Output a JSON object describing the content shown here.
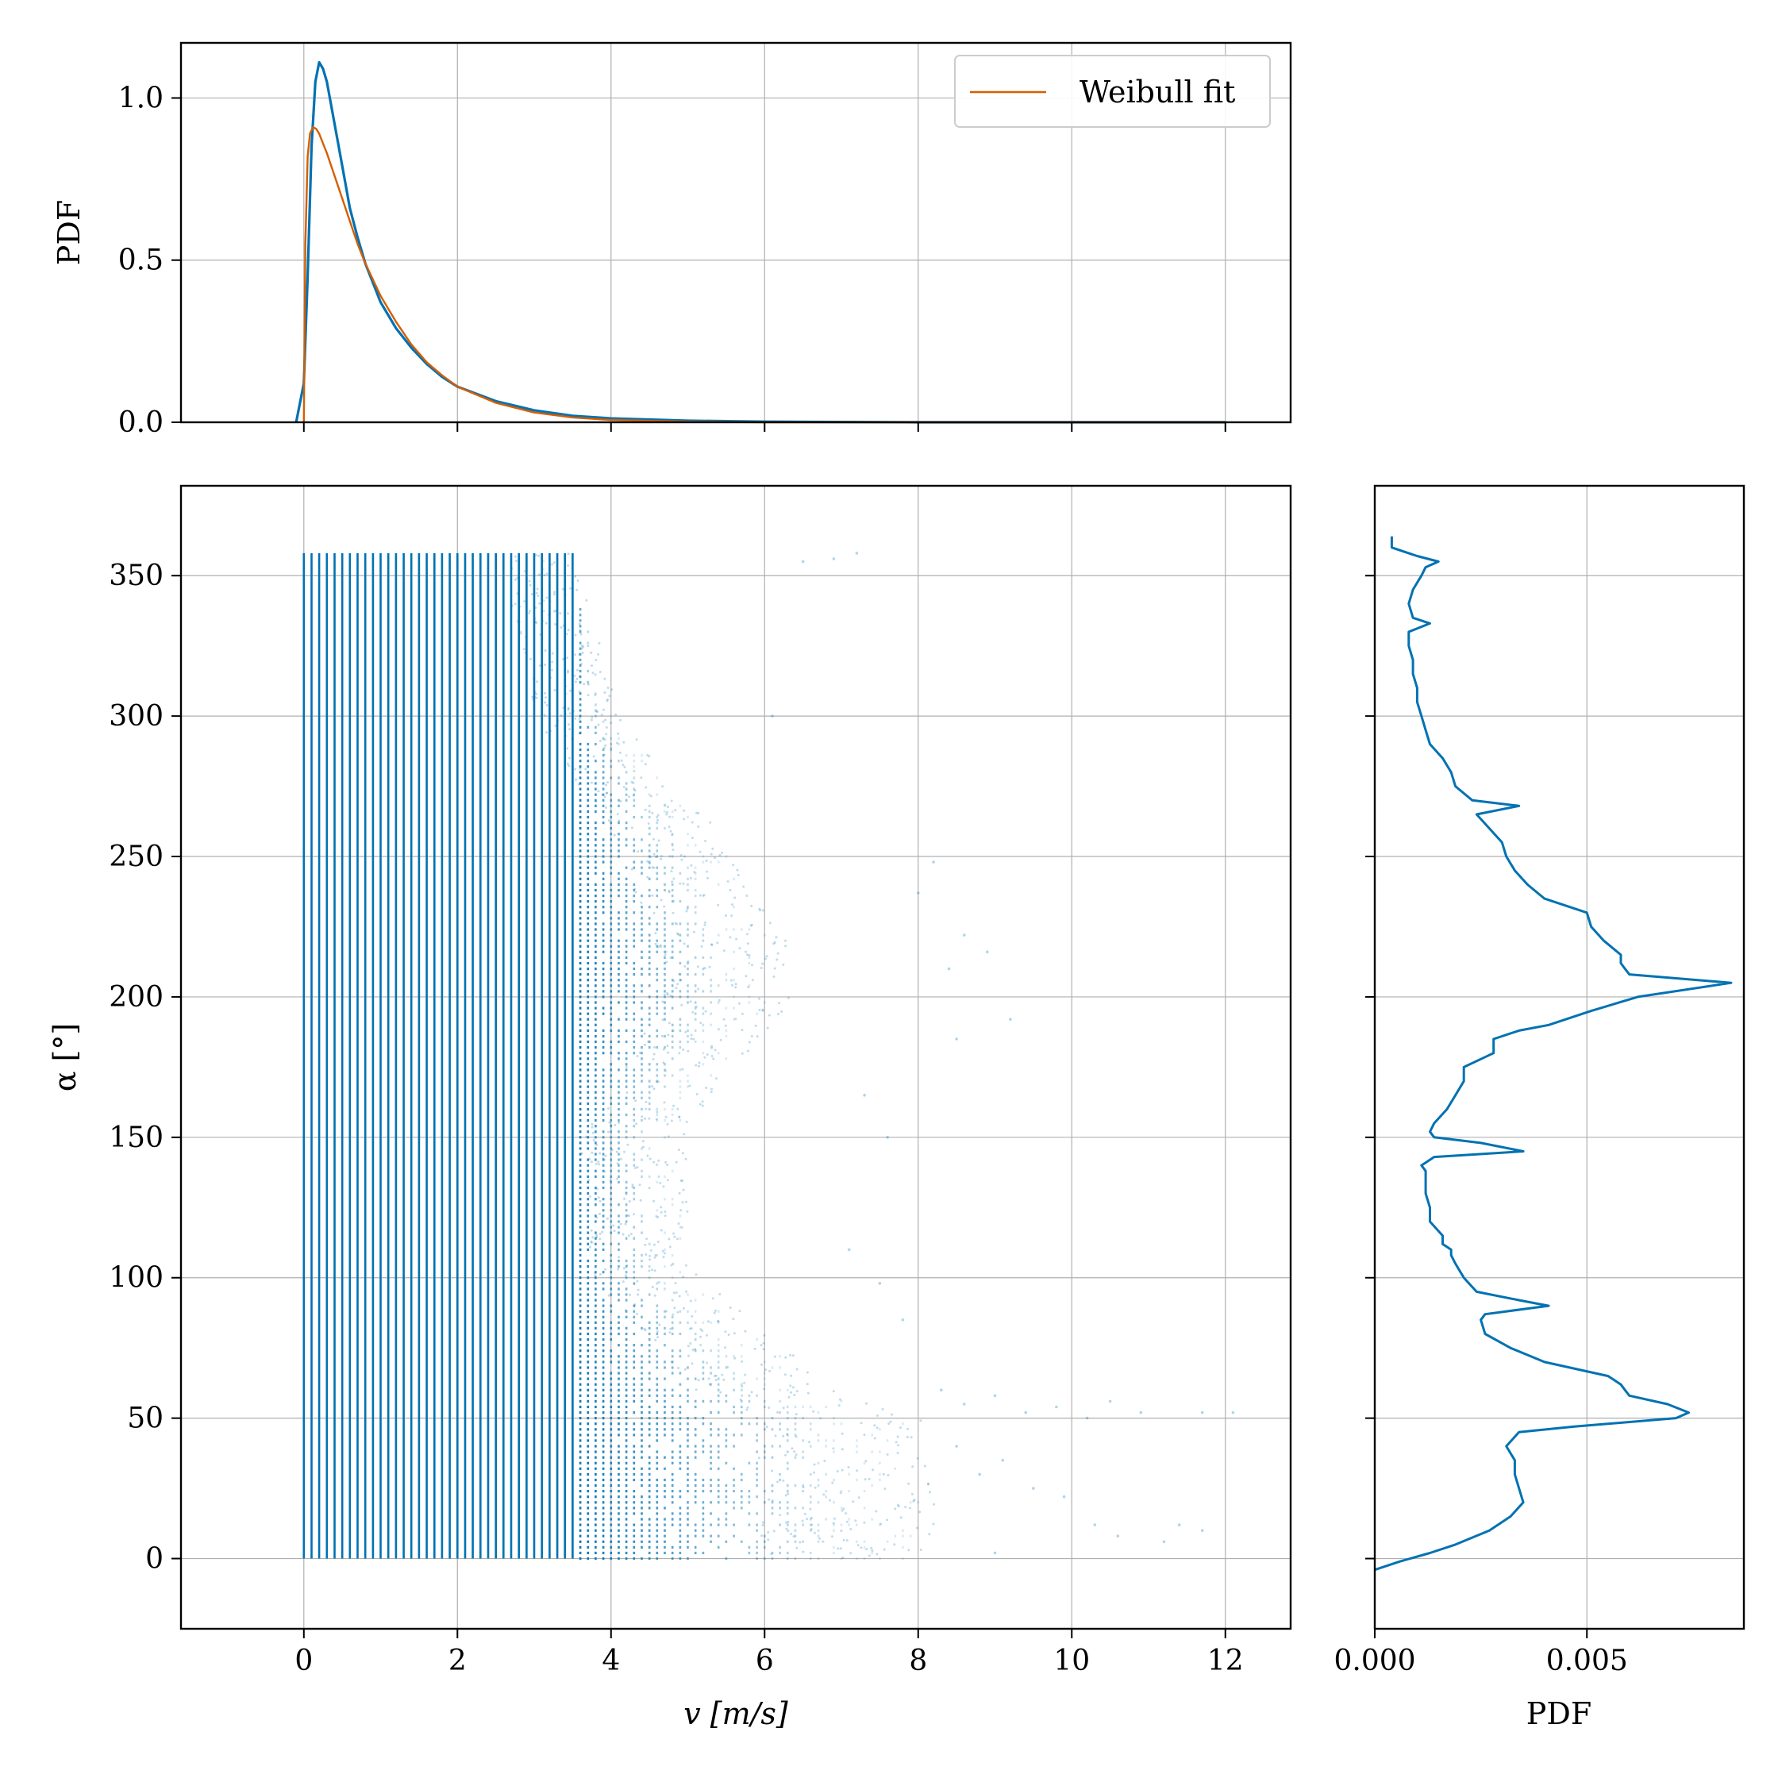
{
  "chart_data": [
    {
      "id": "top",
      "type": "line",
      "xlim": [
        -1.6,
        12.85
      ],
      "ylim": [
        0,
        1.17
      ],
      "xticks": [
        0,
        2,
        4,
        6,
        8,
        10,
        12
      ],
      "yticks": [
        0.0,
        0.5,
        1.0
      ],
      "ytick_labels": [
        "0.0",
        "0.5",
        "1.0"
      ],
      "ylabel": "PDF",
      "xlabel": "",
      "grid": true,
      "legend": {
        "placement": "top-right",
        "entries": [
          "Weibull fit"
        ]
      },
      "series": [
        {
          "name": "",
          "color": "#0072b2",
          "x": [
            -0.1,
            0.0,
            0.05,
            0.1,
            0.15,
            0.2,
            0.25,
            0.3,
            0.4,
            0.5,
            0.6,
            0.7,
            0.8,
            1.0,
            1.2,
            1.4,
            1.6,
            1.8,
            2.0,
            2.5,
            3.0,
            3.5,
            4.0,
            5.0,
            6.0,
            8.0,
            10.0,
            12.0
          ],
          "y": [
            0.0,
            0.12,
            0.45,
            0.85,
            1.05,
            1.11,
            1.09,
            1.05,
            0.92,
            0.79,
            0.66,
            0.57,
            0.49,
            0.37,
            0.29,
            0.23,
            0.18,
            0.14,
            0.11,
            0.065,
            0.037,
            0.02,
            0.012,
            0.005,
            0.002,
            0.0,
            0.0,
            0.0
          ]
        },
        {
          "name": "Weibull fit",
          "color": "#d55e00",
          "x": [
            0.0,
            0.02,
            0.05,
            0.08,
            0.12,
            0.16,
            0.2,
            0.3,
            0.4,
            0.5,
            0.6,
            0.7,
            0.8,
            1.0,
            1.2,
            1.4,
            1.6,
            1.8,
            2.0,
            2.5,
            3.0,
            3.5,
            4.0,
            5.0,
            6.0,
            8.0,
            10.0,
            12.0
          ],
          "y": [
            0.0,
            0.55,
            0.82,
            0.89,
            0.91,
            0.905,
            0.89,
            0.83,
            0.76,
            0.69,
            0.62,
            0.55,
            0.49,
            0.39,
            0.31,
            0.24,
            0.185,
            0.145,
            0.11,
            0.06,
            0.03,
            0.015,
            0.007,
            0.002,
            0.0,
            0.0,
            0.0,
            0.0
          ]
        }
      ]
    },
    {
      "id": "main",
      "type": "scatter",
      "xlim": [
        -1.6,
        12.85
      ],
      "ylim": [
        -25,
        382
      ],
      "xticks": [
        0,
        2,
        4,
        6,
        8,
        10,
        12
      ],
      "yticks": [
        0,
        50,
        100,
        150,
        200,
        250,
        300,
        350
      ],
      "xlabel": "v [m/s]",
      "ylabel": "α [°]",
      "grid": true,
      "color": "#0072b2",
      "v_grid_step": 0.1,
      "v_dense_max": 3.5,
      "alpha_range": [
        0,
        358
      ],
      "max_v_by_alpha": [
        {
          "alpha": 0,
          "v": 7.9
        },
        {
          "alpha": 20,
          "v": 8.0
        },
        {
          "alpha": 50,
          "v": 7.8
        },
        {
          "alpha": 60,
          "v": 6.8
        },
        {
          "alpha": 100,
          "v": 5.0
        },
        {
          "alpha": 150,
          "v": 4.8
        },
        {
          "alpha": 180,
          "v": 5.6
        },
        {
          "alpha": 200,
          "v": 6.2
        },
        {
          "alpha": 220,
          "v": 6.1
        },
        {
          "alpha": 250,
          "v": 5.5
        },
        {
          "alpha": 300,
          "v": 4.0
        },
        {
          "alpha": 340,
          "v": 3.6
        },
        {
          "alpha": 358,
          "v": 3.4
        }
      ],
      "outliers": [
        {
          "v": 8.3,
          "a": 60
        },
        {
          "v": 8.6,
          "a": 55
        },
        {
          "v": 9.0,
          "a": 58
        },
        {
          "v": 9.4,
          "a": 52
        },
        {
          "v": 9.8,
          "a": 54
        },
        {
          "v": 10.2,
          "a": 50
        },
        {
          "v": 10.5,
          "a": 56
        },
        {
          "v": 10.9,
          "a": 52
        },
        {
          "v": 11.7,
          "a": 52
        },
        {
          "v": 12.1,
          "a": 52
        },
        {
          "v": 8.5,
          "a": 40
        },
        {
          "v": 8.8,
          "a": 30
        },
        {
          "v": 9.1,
          "a": 35
        },
        {
          "v": 9.5,
          "a": 25
        },
        {
          "v": 9.9,
          "a": 22
        },
        {
          "v": 10.3,
          "a": 12
        },
        {
          "v": 10.6,
          "a": 8
        },
        {
          "v": 11.2,
          "a": 6
        },
        {
          "v": 11.4,
          "a": 12
        },
        {
          "v": 11.7,
          "a": 10
        },
        {
          "v": 9.0,
          "a": 2
        },
        {
          "v": 8.4,
          "a": 210
        },
        {
          "v": 8.6,
          "a": 222
        },
        {
          "v": 8.9,
          "a": 216
        },
        {
          "v": 9.2,
          "a": 192
        },
        {
          "v": 8.5,
          "a": 185
        },
        {
          "v": 8.2,
          "a": 248
        },
        {
          "v": 8.0,
          "a": 237
        },
        {
          "v": 7.2,
          "a": 358
        },
        {
          "v": 6.5,
          "a": 355
        },
        {
          "v": 6.9,
          "a": 356
        },
        {
          "v": 6.1,
          "a": 300
        },
        {
          "v": 7.1,
          "a": 110
        },
        {
          "v": 7.5,
          "a": 98
        },
        {
          "v": 7.8,
          "a": 85
        },
        {
          "v": 7.6,
          "a": 150
        },
        {
          "v": 7.3,
          "a": 165
        }
      ]
    },
    {
      "id": "right",
      "type": "line",
      "orientation": "horizontal",
      "xlim": [
        0,
        0.0087
      ],
      "ylim": [
        -25,
        382
      ],
      "xticks": [
        0.0,
        0.005
      ],
      "xtick_labels": [
        "0.000",
        "0.005"
      ],
      "xlabel": "PDF",
      "grid": true,
      "series": [
        {
          "name": "",
          "color": "#0072b2",
          "alpha": [
            -4,
            -1,
            2,
            5,
            10,
            15,
            20,
            25,
            30,
            35,
            40,
            45,
            47,
            50,
            52,
            55,
            58,
            60,
            62,
            65,
            70,
            75,
            80,
            85,
            87,
            90,
            92,
            95,
            100,
            105,
            108,
            110,
            112,
            115,
            120,
            125,
            130,
            135,
            138,
            140,
            143,
            145,
            148,
            150,
            152,
            155,
            160,
            165,
            170,
            175,
            180,
            185,
            188,
            190,
            195,
            200,
            205,
            208,
            210,
            212,
            215,
            220,
            225,
            230,
            235,
            240,
            245,
            250,
            255,
            260,
            265,
            268,
            270,
            275,
            280,
            285,
            290,
            295,
            300,
            305,
            310,
            315,
            320,
            325,
            330,
            333,
            335,
            340,
            345,
            350,
            353,
            355,
            357,
            360,
            364
          ],
          "pdf": [
            0.0,
            0.0006,
            0.0013,
            0.0019,
            0.0027,
            0.0032,
            0.0035,
            0.0034,
            0.0033,
            0.0033,
            0.0031,
            0.0034,
            0.0047,
            0.0071,
            0.0074,
            0.0069,
            0.006,
            0.0059,
            0.0058,
            0.0055,
            0.004,
            0.0032,
            0.0026,
            0.0025,
            0.0026,
            0.0041,
            0.0034,
            0.0024,
            0.0021,
            0.0019,
            0.0018,
            0.0018,
            0.0016,
            0.0016,
            0.0013,
            0.0013,
            0.0012,
            0.0012,
            0.0012,
            0.0011,
            0.0014,
            0.0035,
            0.0025,
            0.0014,
            0.0013,
            0.0014,
            0.0017,
            0.0019,
            0.0021,
            0.0021,
            0.0028,
            0.0028,
            0.0034,
            0.0041,
            0.0051,
            0.0062,
            0.0084,
            0.006,
            0.0059,
            0.0058,
            0.0058,
            0.0054,
            0.0051,
            0.005,
            0.004,
            0.0036,
            0.0033,
            0.0031,
            0.003,
            0.0027,
            0.0024,
            0.0034,
            0.0023,
            0.0019,
            0.0018,
            0.0016,
            0.0013,
            0.0012,
            0.0011,
            0.001,
            0.001,
            0.0009,
            0.0009,
            0.0008,
            0.0008,
            0.0013,
            0.0009,
            0.0008,
            0.0009,
            0.0011,
            0.0012,
            0.0015,
            0.001,
            0.0004,
            0.0004
          ]
        }
      ]
    }
  ]
}
